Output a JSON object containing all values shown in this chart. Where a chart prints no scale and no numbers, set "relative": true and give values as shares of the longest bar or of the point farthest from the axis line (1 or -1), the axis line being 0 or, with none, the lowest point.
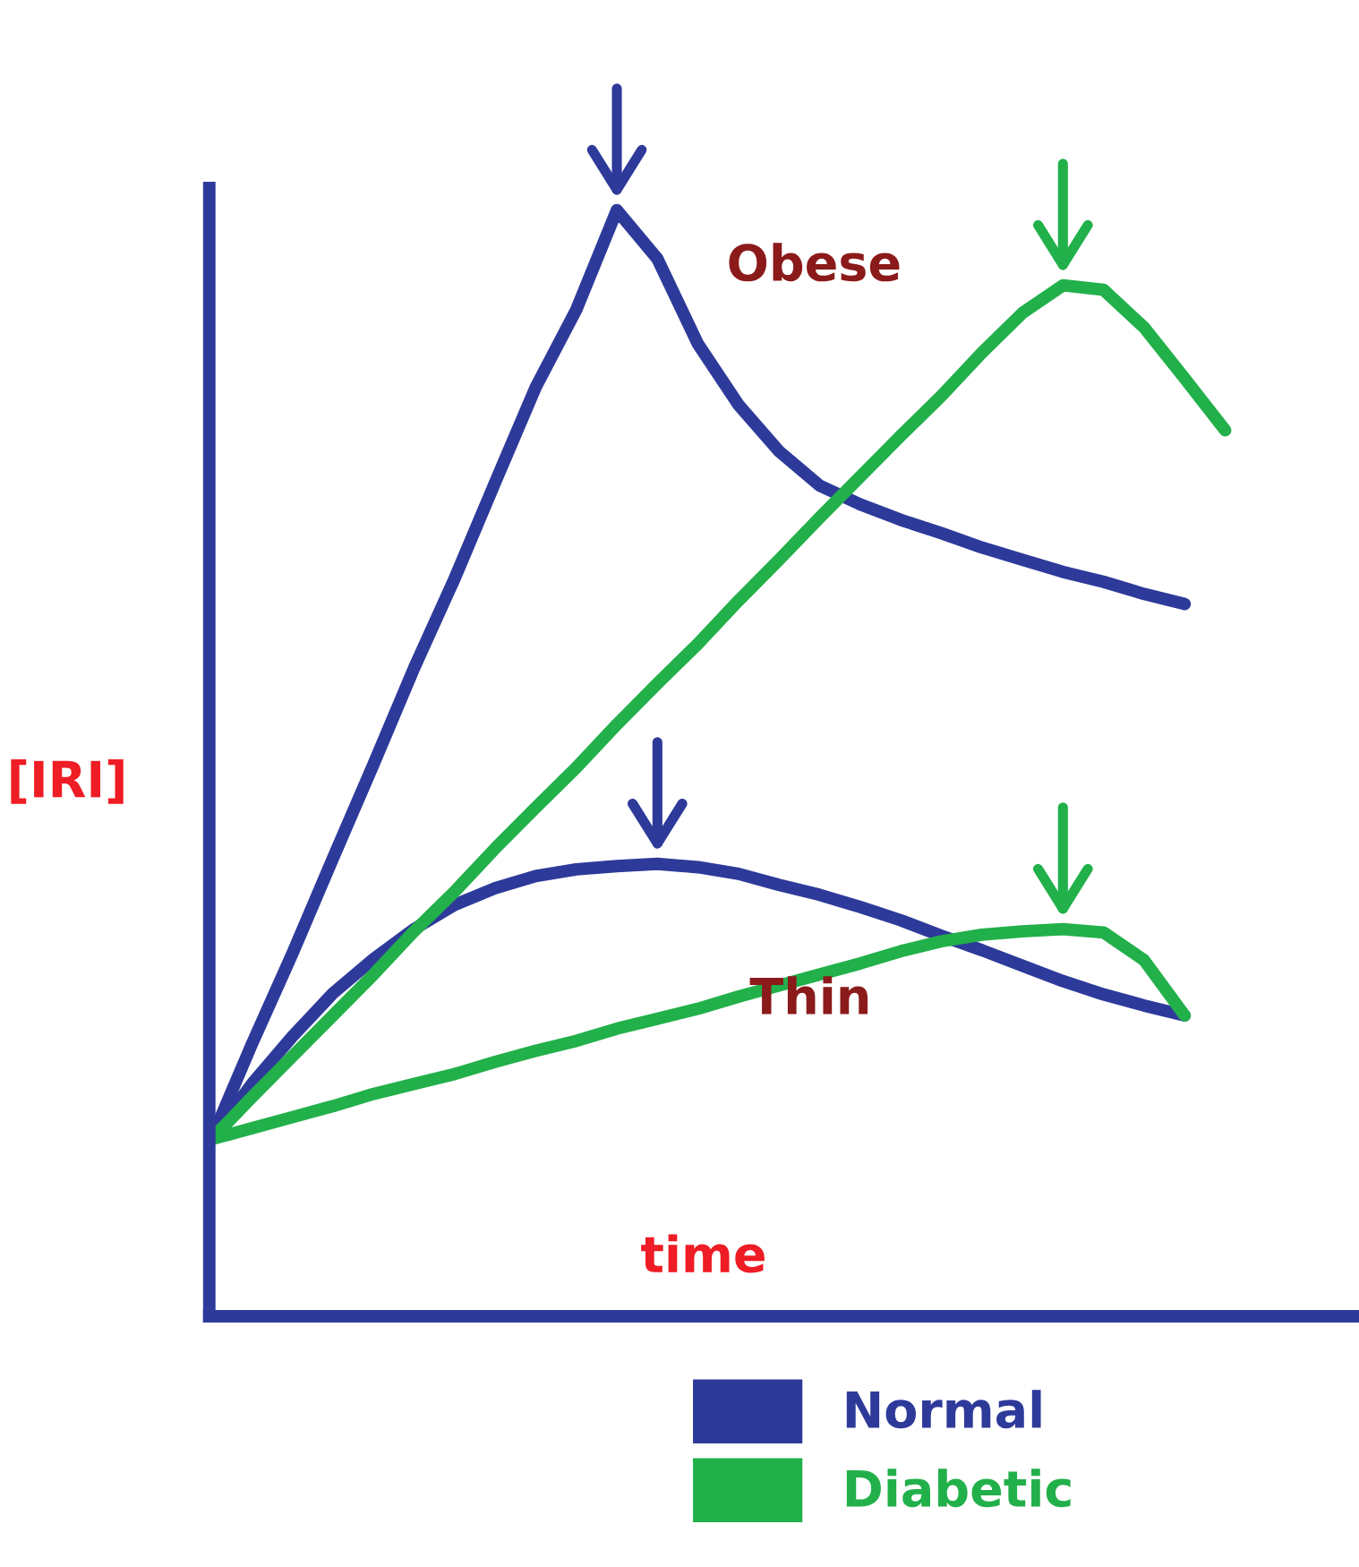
{
  "chart_data": {
    "type": "line",
    "relative": true,
    "xlabel": "time",
    "ylabel": "[IRI]",
    "categories": [
      null,
      null,
      null,
      null,
      null,
      null,
      null,
      null,
      null,
      null,
      null,
      null,
      null,
      null,
      null,
      null,
      null,
      null,
      null,
      null,
      null,
      null,
      null,
      null,
      null,
      null
    ],
    "series": [
      {
        "name": "Normal",
        "color": "#2e3a9a",
        "values": [
          0.16,
          0.246,
          0.328,
          0.414,
          0.499,
          0.586,
          0.667,
          0.754,
          0.84,
          0.91,
          1,
          0.956,
          0.879,
          0.824,
          0.782,
          0.751,
          0.734,
          0.72,
          0.708,
          0.695,
          0.684,
          0.673,
          0.664,
          0.653,
          0.644,
          null
        ]
      },
      {
        "color": "#2e3a9a",
        "values": [
          0.16,
          0.21,
          0.253,
          0.292,
          0.323,
          0.35,
          0.372,
          0.387,
          0.398,
          0.404,
          0.407,
          0.409,
          0.406,
          0.4,
          0.39,
          0.381,
          0.37,
          0.358,
          0.344,
          0.331,
          0.317,
          0.303,
          0.291,
          0.281,
          0.272,
          null
        ]
      },
      {
        "name": "Diabetic",
        "color": "#22b04a",
        "values": [
          0.16,
          0.198,
          0.235,
          0.272,
          0.309,
          0.348,
          0.384,
          0.423,
          0.46,
          0.496,
          0.535,
          0.572,
          0.608,
          0.647,
          0.684,
          0.722,
          0.759,
          0.796,
          0.832,
          0.871,
          0.907,
          0.932,
          0.928,
          0.894,
          0.848,
          0.801
        ]
      },
      {
        "color": "#22b04a",
        "values": [
          0.16,
          0.17,
          0.18,
          0.19,
          0.201,
          0.21,
          0.219,
          0.23,
          0.24,
          0.249,
          0.26,
          0.269,
          0.278,
          0.289,
          0.299,
          0.309,
          0.319,
          0.33,
          0.339,
          0.345,
          0.348,
          0.35,
          0.347,
          0.322,
          0.272,
          null
        ]
      }
    ],
    "annotations": [
      "Obese",
      "Thin"
    ],
    "legend": "bottom"
  }
}
